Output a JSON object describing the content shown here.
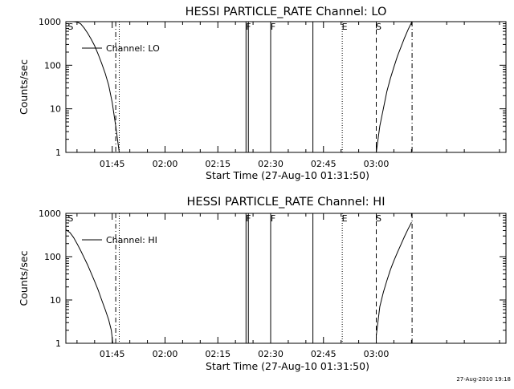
{
  "footer_stamp": "27-Aug-2010 19:18",
  "chart_data": [
    {
      "type": "line",
      "title": "HESSI PARTICLE_RATE Channel: LO",
      "xlabel": "Start Time (27-Aug-10 01:31:50)",
      "ylabel": "Counts/sec",
      "y_scale": "log",
      "ylim": [
        1,
        1000
      ],
      "y_ticks": [
        1,
        10,
        100,
        1000
      ],
      "y_tick_labels": [
        "1",
        "10",
        "100",
        "1000"
      ],
      "xlim": [
        "01:31:50",
        "03:36:50"
      ],
      "x_ticks": [
        "01:45",
        "02:00",
        "02:15",
        "02:30",
        "02:45",
        "03:00"
      ],
      "x_tick_labels": [
        "01:45",
        "02:00",
        "02:15",
        "02:30",
        "02:45",
        "03:00"
      ],
      "legend": {
        "label": "Channel: LO",
        "placement": "upper-left"
      },
      "series": [
        {
          "name": "Channel: LO",
          "segments": [
            [
              [
                "01:31:50",
                1000
              ],
              [
                "01:33:00",
                1000
              ],
              [
                "01:34:00",
                1000
              ],
              [
                "01:35:00",
                980
              ],
              [
                "01:36:00",
                900
              ],
              [
                "01:37:00",
                720
              ],
              [
                "01:38:00",
                550
              ],
              [
                "01:39:00",
                400
              ],
              [
                "01:40:00",
                280
              ],
              [
                "01:41:00",
                180
              ],
              [
                "01:42:00",
                110
              ],
              [
                "01:43:00",
                65
              ],
              [
                "01:44:00",
                35
              ],
              [
                "01:45:00",
                14
              ],
              [
                "01:46:00",
                4
              ],
              [
                "01:46:30",
                2
              ],
              [
                "01:47:00",
                1
              ]
            ],
            [
              [
                "03:00:00",
                1
              ],
              [
                "03:01:00",
                4
              ],
              [
                "03:02:00",
                10
              ],
              [
                "03:03:00",
                25
              ],
              [
                "03:04:00",
                50
              ],
              [
                "03:05:00",
                90
              ],
              [
                "03:06:00",
                160
              ],
              [
                "03:07:00",
                260
              ],
              [
                "03:08:00",
                420
              ],
              [
                "03:09:00",
                650
              ],
              [
                "03:10:00",
                950
              ]
            ]
          ]
        }
      ],
      "markers": [
        {
          "time": "01:32:30",
          "style": "label",
          "label": "S"
        },
        {
          "time": "01:46:00",
          "style": "dash-dot",
          "label": ""
        },
        {
          "time": "01:47:00",
          "style": "dotted",
          "label": ""
        },
        {
          "time": "02:23:00",
          "style": "solid",
          "label": "F"
        },
        {
          "time": "02:23:40",
          "style": "solid",
          "label": ""
        },
        {
          "time": "02:30:00",
          "style": "solid",
          "label": "F"
        },
        {
          "time": "02:42:00",
          "style": "solid",
          "label": ""
        },
        {
          "time": "02:50:20",
          "style": "dotted",
          "label": "E"
        },
        {
          "time": "03:00:00",
          "style": "dashed",
          "label": "S"
        },
        {
          "time": "03:10:10",
          "style": "dash-dot",
          "label": ""
        }
      ]
    },
    {
      "type": "line",
      "title": "HESSI PARTICLE_RATE Channel: HI",
      "xlabel": "Start Time (27-Aug-10 01:31:50)",
      "ylabel": "Counts/sec",
      "y_scale": "log",
      "ylim": [
        1,
        1000
      ],
      "y_ticks": [
        1,
        10,
        100,
        1000
      ],
      "y_tick_labels": [
        "1",
        "10",
        "100",
        "1000"
      ],
      "xlim": [
        "01:31:50",
        "03:36:50"
      ],
      "x_ticks": [
        "01:45",
        "02:00",
        "02:15",
        "02:30",
        "02:45",
        "03:00"
      ],
      "x_tick_labels": [
        "01:45",
        "02:00",
        "02:15",
        "02:30",
        "02:45",
        "03:00"
      ],
      "legend": {
        "label": "Channel: HI",
        "placement": "upper-left"
      },
      "series": [
        {
          "name": "Channel: HI",
          "segments": [
            [
              [
                "01:31:50",
                420
              ],
              [
                "01:33:00",
                360
              ],
              [
                "01:34:00",
                280
              ],
              [
                "01:35:00",
                200
              ],
              [
                "01:36:00",
                140
              ],
              [
                "01:37:00",
                95
              ],
              [
                "01:38:00",
                65
              ],
              [
                "01:39:00",
                42
              ],
              [
                "01:40:00",
                27
              ],
              [
                "01:41:00",
                17
              ],
              [
                "01:42:00",
                10
              ],
              [
                "01:43:00",
                6
              ],
              [
                "01:44:00",
                3.5
              ],
              [
                "01:44:45",
                2
              ],
              [
                "01:45:10",
                1
              ]
            ],
            [
              [
                "03:00:00",
                1.5
              ],
              [
                "03:01:00",
                7
              ],
              [
                "03:02:00",
                15
              ],
              [
                "03:03:00",
                28
              ],
              [
                "03:04:00",
                50
              ],
              [
                "03:05:00",
                80
              ],
              [
                "03:06:00",
                125
              ],
              [
                "03:07:00",
                190
              ],
              [
                "03:08:00",
                290
              ],
              [
                "03:09:00",
                430
              ],
              [
                "03:10:00",
                620
              ]
            ]
          ]
        }
      ],
      "markers": [
        {
          "time": "01:32:30",
          "style": "label",
          "label": "S"
        },
        {
          "time": "01:46:00",
          "style": "dash-dot",
          "label": ""
        },
        {
          "time": "01:47:00",
          "style": "dotted",
          "label": ""
        },
        {
          "time": "02:23:00",
          "style": "solid",
          "label": "F"
        },
        {
          "time": "02:23:40",
          "style": "solid",
          "label": ""
        },
        {
          "time": "02:30:00",
          "style": "solid",
          "label": "F"
        },
        {
          "time": "02:42:00",
          "style": "solid",
          "label": ""
        },
        {
          "time": "02:50:20",
          "style": "dotted",
          "label": "E"
        },
        {
          "time": "03:00:00",
          "style": "dashed",
          "label": "S"
        },
        {
          "time": "03:10:10",
          "style": "dash-dot",
          "label": ""
        }
      ]
    }
  ]
}
